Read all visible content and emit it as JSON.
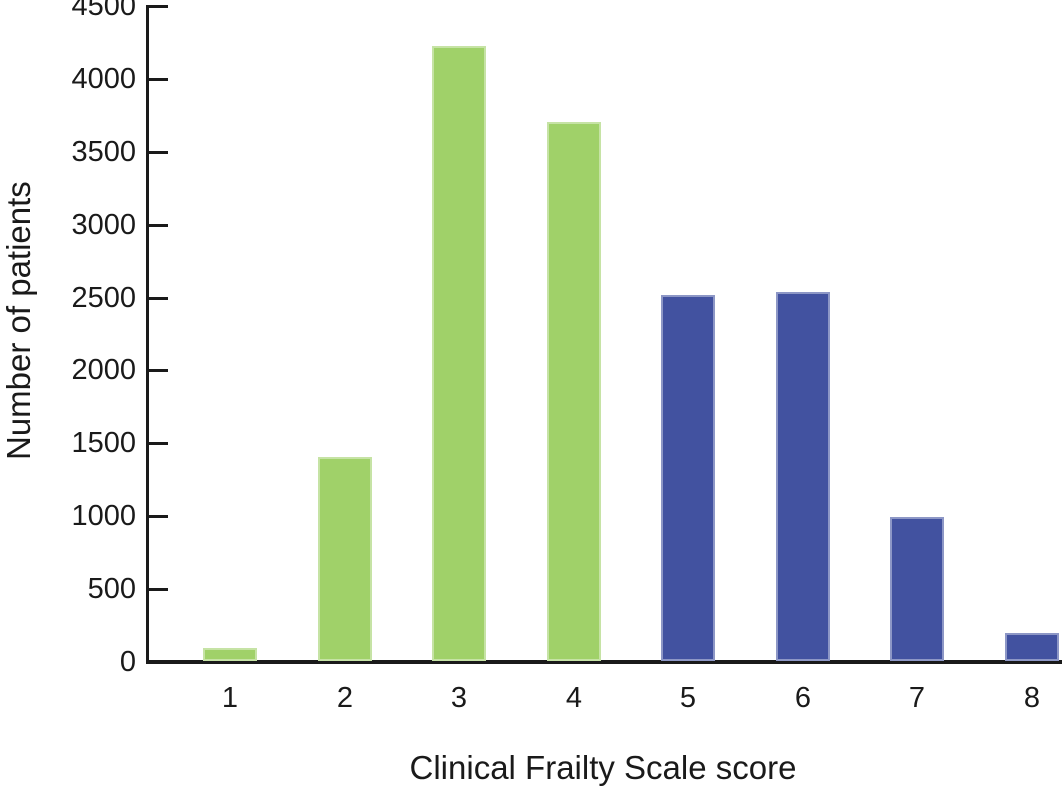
{
  "chart_data": {
    "type": "bar",
    "title": "",
    "xlabel": "Clinical Frailty Scale score",
    "ylabel": "Number of patients",
    "categories": [
      "1",
      "2",
      "3",
      "4",
      "5",
      "6",
      "7",
      "8"
    ],
    "values": [
      90,
      1400,
      4220,
      3700,
      2510,
      2530,
      985,
      190
    ],
    "bar_colors": [
      "#a0d169",
      "#a0d169",
      "#a0d169",
      "#a0d169",
      "#4252a0",
      "#4252a0",
      "#4252a0",
      "#4252a0"
    ],
    "ylim": [
      0,
      4500
    ],
    "yticks": [
      0,
      500,
      1000,
      1500,
      2000,
      2500,
      3000,
      3500,
      4000,
      4500
    ],
    "grid": false,
    "legend": "none",
    "colors": {
      "green_bars": "#a0d169",
      "blue_bars": "#4252a0",
      "axis": "#1a1a1a",
      "background": "#ffffff"
    }
  }
}
